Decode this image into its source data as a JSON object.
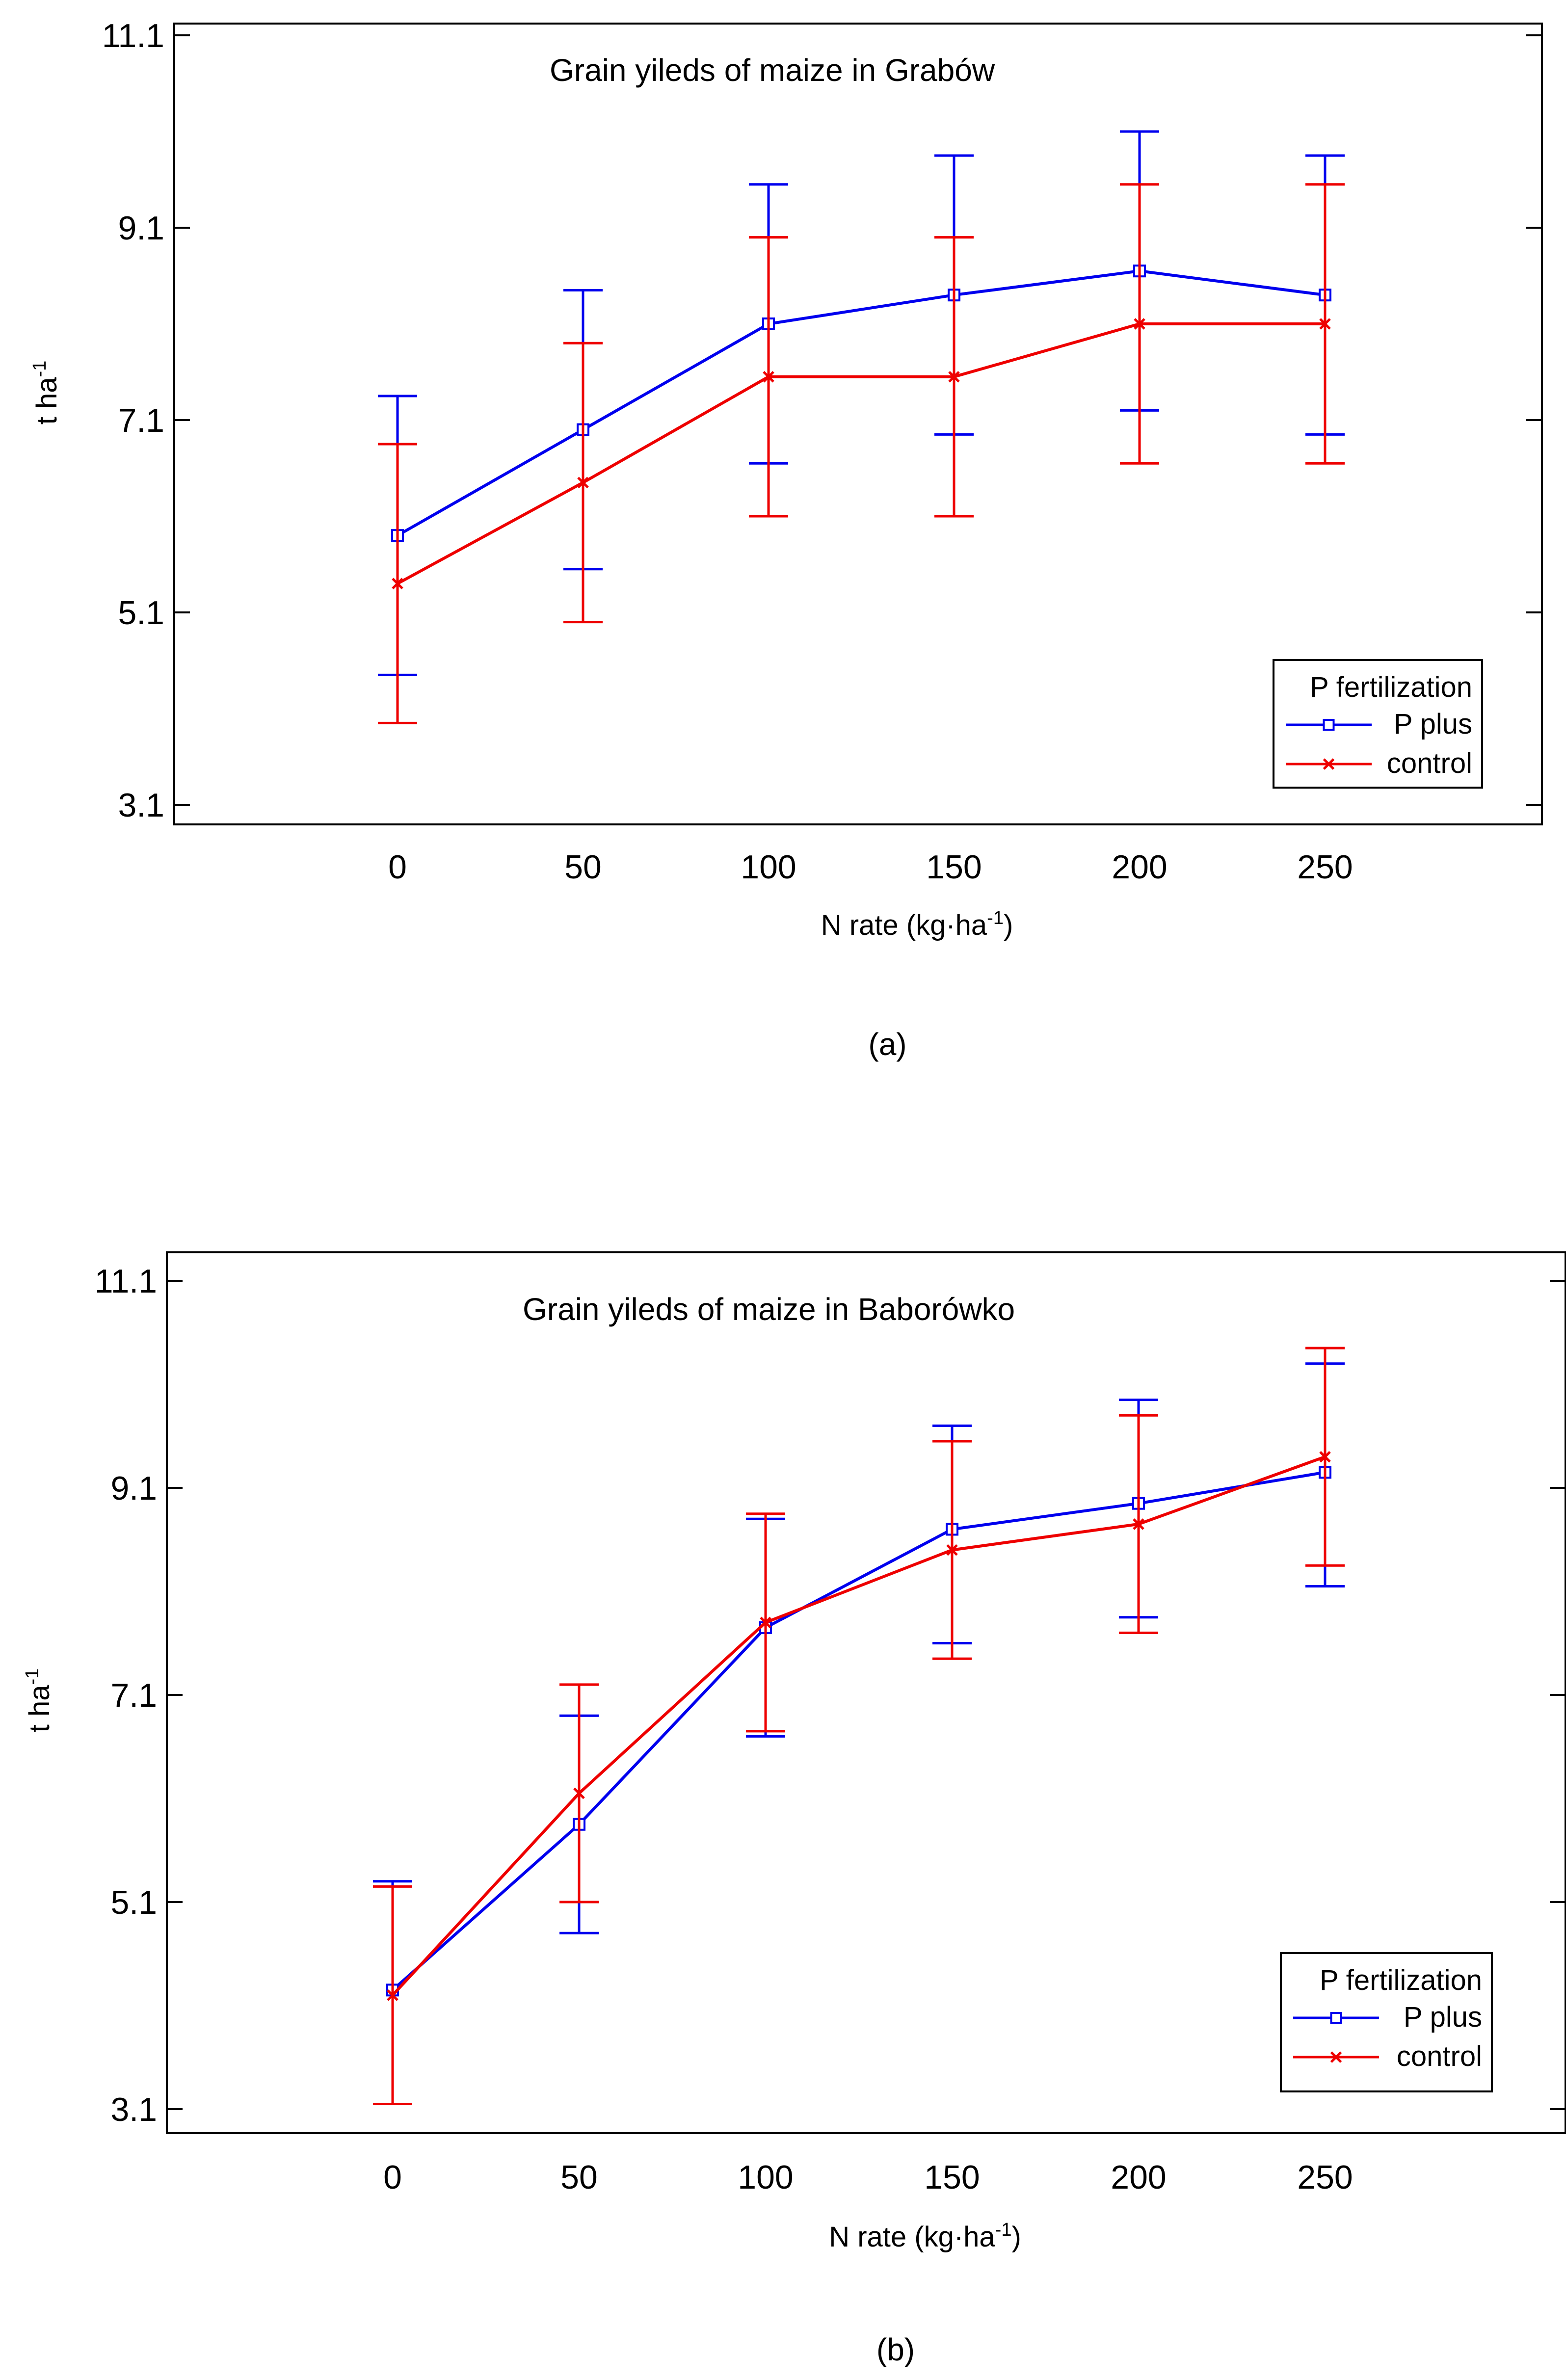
{
  "chart_data": [
    {
      "type": "line",
      "panel_label": "(a)",
      "title": "Grain yileds of maize in Grabów",
      "xlabel": "N rate (kg·ha",
      "xlabel_sup": "-1",
      "xlabel_close": ")",
      "ylabel": "t ha",
      "ylabel_sup": "-1",
      "categories": [
        "0",
        "50",
        "100",
        "150",
        "200",
        "250"
      ],
      "x": [
        0,
        50,
        100,
        150,
        200,
        250
      ],
      "yticks": [
        "3.1",
        "5.1",
        "7.1",
        "9.1",
        "11.1"
      ],
      "ytick_values": [
        3.1,
        5.1,
        7.1,
        9.1,
        11.1
      ],
      "ylim": [
        2.9,
        11.1
      ],
      "legend": {
        "title": "P fertilization",
        "position": "bottom-right"
      },
      "series": [
        {
          "name": "P plus",
          "color": "#0000ee",
          "marker": "square",
          "values": [
            5.9,
            7.0,
            8.1,
            8.4,
            8.65,
            8.4
          ],
          "err_low": [
            4.45,
            5.55,
            6.65,
            6.95,
            7.2,
            6.95
          ],
          "err_high": [
            7.35,
            8.45,
            9.55,
            9.85,
            10.1,
            9.85
          ]
        },
        {
          "name": "control",
          "color": "#ee0000",
          "marker": "x",
          "values": [
            5.4,
            6.45,
            7.55,
            7.55,
            8.1,
            8.1
          ],
          "err_low": [
            3.95,
            5.0,
            6.1,
            6.1,
            6.65,
            6.65
          ],
          "err_high": [
            6.85,
            7.9,
            9.0,
            9.0,
            9.55,
            9.55
          ]
        }
      ]
    },
    {
      "type": "line",
      "panel_label": "(b)",
      "title": "Grain yileds of maize in Baborówko",
      "xlabel": "N rate (kg·ha",
      "xlabel_sup": "-1",
      "xlabel_close": ")",
      "ylabel": "t ha",
      "ylabel_sup": "-1",
      "categories": [
        "0",
        "50",
        "100",
        "150",
        "200",
        "250"
      ],
      "x": [
        0,
        50,
        100,
        150,
        200,
        250
      ],
      "yticks": [
        "3.1",
        "5.1",
        "7.1",
        "9.1",
        "11.1"
      ],
      "ytick_values": [
        3.1,
        5.1,
        7.1,
        9.1,
        11.1
      ],
      "ylim": [
        2.9,
        11.1
      ],
      "legend": {
        "title": "P fertilization",
        "position": "bottom-right"
      },
      "series": [
        {
          "name": "P plus",
          "color": "#0000ee",
          "marker": "square",
          "values": [
            4.25,
            5.85,
            7.75,
            8.7,
            8.95,
            9.25
          ],
          "err_low": [
            3.15,
            4.8,
            6.7,
            7.6,
            7.85,
            8.15
          ],
          "err_high": [
            5.3,
            6.9,
            8.8,
            9.7,
            9.95,
            10.3
          ]
        },
        {
          "name": "control",
          "color": "#ee0000",
          "marker": "x",
          "values": [
            4.2,
            6.15,
            7.8,
            8.5,
            8.75,
            9.4
          ],
          "err_low": [
            3.15,
            5.1,
            6.75,
            7.45,
            7.7,
            8.35
          ],
          "err_high": [
            5.25,
            7.2,
            8.85,
            9.55,
            9.8,
            10.45
          ]
        }
      ]
    }
  ]
}
